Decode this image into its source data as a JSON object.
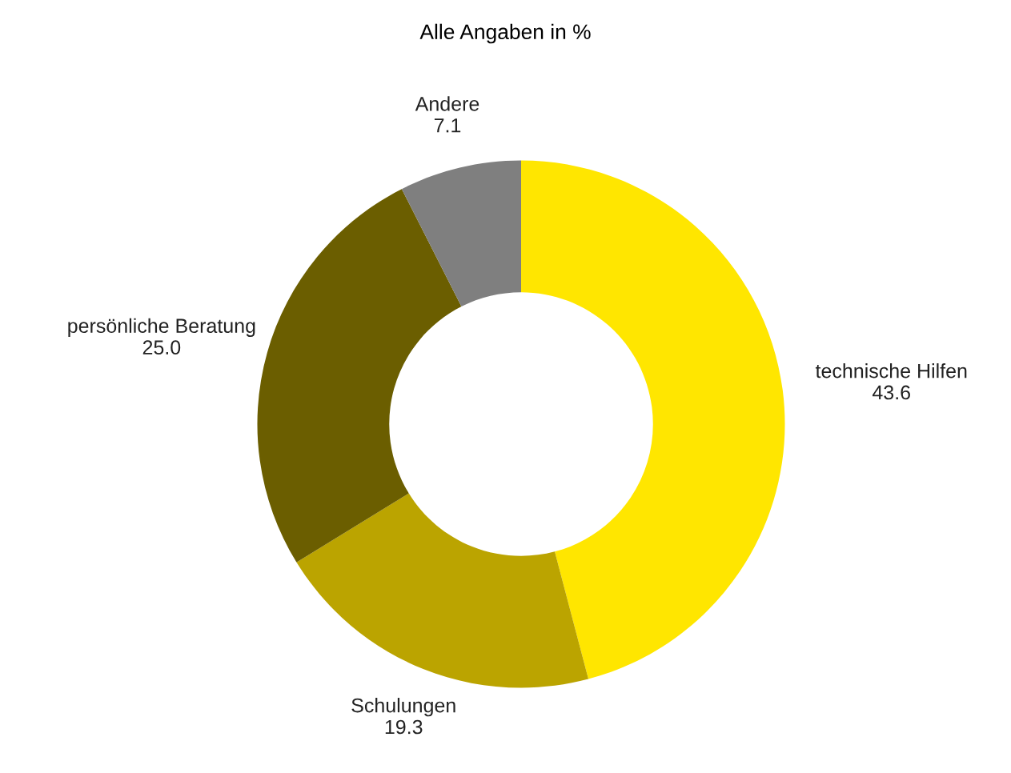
{
  "chart_data": {
    "type": "donut",
    "title": "Alle Angaben in %",
    "categories": [
      "technische Hilfen",
      "Schulungen",
      "persönliche Beratung",
      "Andere"
    ],
    "values": [
      43.6,
      19.3,
      25.0,
      7.1
    ],
    "value_labels": [
      "43.6",
      "19.3",
      "25.0",
      "7.1"
    ],
    "colors": [
      "#ffe600",
      "#bba400",
      "#6b5e00",
      "#7f7f7f"
    ],
    "legend": false
  }
}
